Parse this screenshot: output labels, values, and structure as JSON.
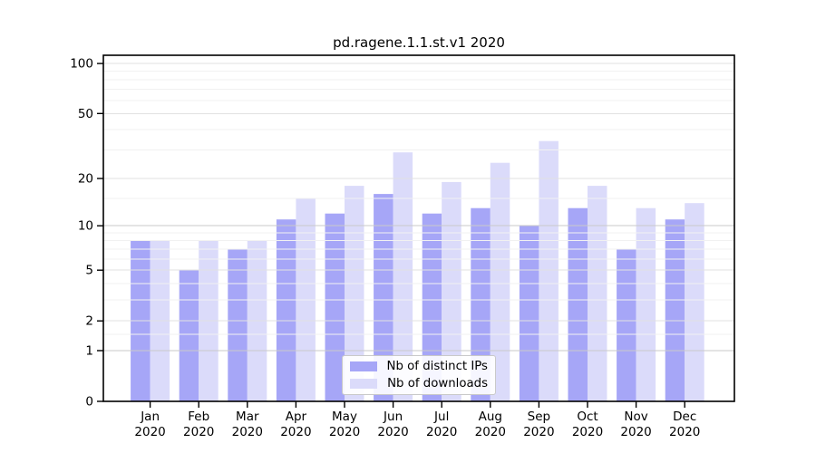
{
  "figure": {
    "background": "#ffffff",
    "text_color": "#000000"
  },
  "chart_data": {
    "type": "bar",
    "title": "pd.ragene.1.1.st.v1 2020",
    "categories": [
      {
        "month": "Jan",
        "year": "2020"
      },
      {
        "month": "Feb",
        "year": "2020"
      },
      {
        "month": "Mar",
        "year": "2020"
      },
      {
        "month": "Apr",
        "year": "2020"
      },
      {
        "month": "May",
        "year": "2020"
      },
      {
        "month": "Jun",
        "year": "2020"
      },
      {
        "month": "Jul",
        "year": "2020"
      },
      {
        "month": "Aug",
        "year": "2020"
      },
      {
        "month": "Sep",
        "year": "2020"
      },
      {
        "month": "Oct",
        "year": "2020"
      },
      {
        "month": "Nov",
        "year": "2020"
      },
      {
        "month": "Dec",
        "year": "2020"
      }
    ],
    "series": [
      {
        "name": "Nb of distinct IPs",
        "color": "#a6a6f7",
        "values": [
          8,
          5,
          7,
          11,
          12,
          16,
          12,
          13,
          10,
          13,
          7,
          11
        ]
      },
      {
        "name": "Nb of downloads",
        "color": "#dbdbfa",
        "values": [
          8,
          8,
          8,
          15,
          18,
          29,
          19,
          25,
          34,
          18,
          13,
          14
        ]
      }
    ],
    "yticks": [
      0,
      1,
      2,
      5,
      10,
      20,
      50,
      100
    ],
    "scale": "log1p",
    "ylim": [
      0,
      112
    ],
    "xlabel": "",
    "ylabel": "",
    "grid": true,
    "legend_position": "lower center"
  }
}
